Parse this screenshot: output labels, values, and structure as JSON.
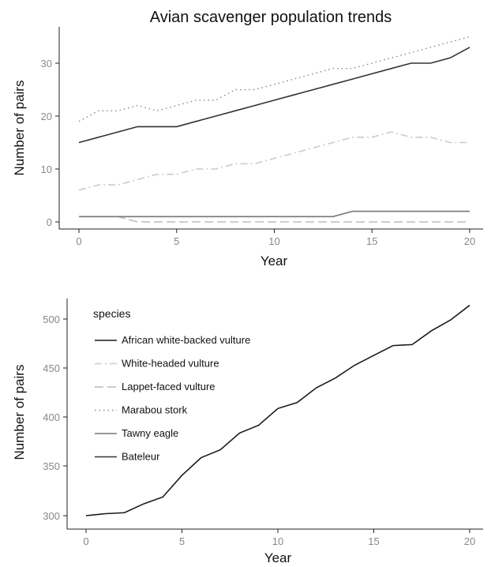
{
  "chart_data": [
    {
      "type": "line",
      "title": "Avian scavenger population trends",
      "xlabel": "Year",
      "ylabel": "Number of pairs",
      "xlim": [
        0,
        20
      ],
      "ylim": [
        -1,
        37
      ],
      "xticks": [
        "0",
        "5",
        "10",
        "15",
        "20"
      ],
      "yticks": [
        "0",
        "10",
        "20",
        "30"
      ],
      "grid": false,
      "x": [
        0,
        1,
        2,
        3,
        4,
        5,
        6,
        7,
        8,
        9,
        10,
        11,
        12,
        13,
        14,
        15,
        16,
        17,
        18,
        19,
        20
      ],
      "series": [
        {
          "name": "Lappet-faced vulture",
          "color": "#bbbbbb",
          "dash": "dashed",
          "values": [
            1,
            1,
            1,
            0,
            0,
            0,
            0,
            0,
            0,
            0,
            0,
            0,
            0,
            0,
            0,
            0,
            0,
            0,
            0,
            0,
            0
          ]
        },
        {
          "name": "Tawny eagle",
          "color": "#777777",
          "dash": "solid",
          "values": [
            1,
            1,
            1,
            1,
            1,
            1,
            1,
            1,
            1,
            1,
            1,
            1,
            1,
            1,
            2,
            2,
            2,
            2,
            2,
            2,
            2
          ]
        },
        {
          "name": "White-headed vulture",
          "color": "#cccccc",
          "dash": "dashdot",
          "values": [
            6,
            7,
            7,
            8,
            9,
            9,
            10,
            10,
            11,
            11,
            12,
            13,
            14,
            15,
            16,
            16,
            17,
            16,
            16,
            15,
            15
          ]
        },
        {
          "name": "Marabou stork",
          "color": "#888888",
          "dash": "dotted",
          "values": [
            19,
            21,
            21,
            22,
            21,
            22,
            23,
            23,
            25,
            25,
            26,
            27,
            28,
            29,
            29,
            30,
            31,
            32,
            33,
            34,
            35
          ]
        },
        {
          "name": "Bateleur",
          "color": "#333333",
          "dash": "solid",
          "values": [
            15,
            16,
            17,
            18,
            18,
            18,
            19,
            20,
            21,
            22,
            23,
            24,
            25,
            26,
            27,
            28,
            29,
            30,
            30,
            31,
            33
          ]
        }
      ]
    },
    {
      "type": "line",
      "xlabel": "Year",
      "ylabel": "Number of pairs",
      "xlim": [
        -0.6,
        20.6
      ],
      "ylim": [
        295,
        525
      ],
      "xticks": [
        "0",
        "5",
        "10",
        "15",
        "20"
      ],
      "yticks": [
        "300",
        "350",
        "400",
        "450",
        "500"
      ],
      "grid": false,
      "legend_position": "top-left",
      "x": [
        0,
        1,
        2,
        3,
        4,
        5,
        6,
        7,
        8,
        9,
        10,
        11,
        12,
        13,
        14,
        15,
        16,
        17,
        18,
        19,
        20
      ],
      "series": [
        {
          "name": "African white-backed vulture",
          "color": "#1a1a1a",
          "dash": "solid",
          "values": [
            300,
            302,
            303,
            312,
            319,
            341,
            359,
            367,
            384,
            392,
            409,
            415,
            430,
            440,
            453,
            463,
            473,
            474,
            488,
            499,
            514
          ]
        }
      ]
    }
  ],
  "legend": {
    "title": "species",
    "items": [
      {
        "label": "African white-backed vulture",
        "color": "#1a1a1a",
        "dash": "solid"
      },
      {
        "label": "White-headed vulture",
        "color": "#cccccc",
        "dash": "dashdot"
      },
      {
        "label": "Lappet-faced vulture",
        "color": "#bbbbbb",
        "dash": "dashed"
      },
      {
        "label": "Marabou stork",
        "color": "#888888",
        "dash": "dotted"
      },
      {
        "label": "Tawny eagle",
        "color": "#777777",
        "dash": "solid"
      },
      {
        "label": "Bateleur",
        "color": "#333333",
        "dash": "solid"
      }
    ]
  }
}
